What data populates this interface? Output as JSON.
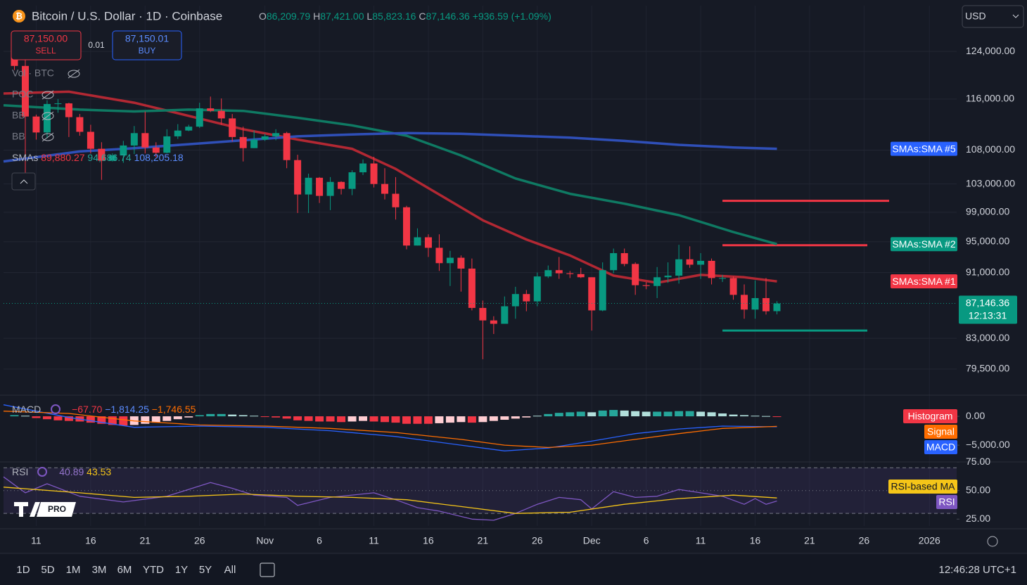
{
  "header": {
    "title": "Bitcoin / U.S. Dollar · 1D · Coinbase",
    "ohlc": [
      {
        "label": "O",
        "value": "86,209.79"
      },
      {
        "label": "H",
        "value": "87,421.00"
      },
      {
        "label": "L",
        "value": "85,823.16"
      },
      {
        "label": "C",
        "value": "87,146.36"
      }
    ],
    "change": "+936.59 (+1.09%)",
    "sell": {
      "price": "87,150.00",
      "label": "SELL"
    },
    "spread": "0.01",
    "buy": {
      "price": "87,150.01",
      "label": "BUY"
    },
    "currency": "USD"
  },
  "toolbar": {
    "ranges": [
      "1D",
      "5D",
      "1M",
      "3M",
      "6M",
      "YTD",
      "1Y",
      "5Y",
      "All"
    ],
    "clock": "12:46:28 UTC+1"
  },
  "chart_data": [
    {
      "type": "candlestick",
      "log": true,
      "grid": true,
      "indicators": [
        "Vol · BTC",
        "POC",
        "BB",
        "BB"
      ],
      "legend_title": "SMAs",
      "xlim": [
        8,
        95.5
      ],
      "xticks": [
        11,
        {
          "value": 16,
          "label": "16"
        },
        {
          "value": 21,
          "label": "21"
        },
        {
          "value": 26,
          "label": "26"
        },
        {
          "value": 32,
          "label": "Nov"
        },
        {
          "value": 37,
          "label": "6"
        },
        {
          "value": 42,
          "label": "11"
        },
        {
          "value": 47,
          "label": "16"
        },
        {
          "value": 52,
          "label": "21"
        },
        {
          "value": 57,
          "label": "26"
        },
        {
          "value": 62,
          "label": "Dec"
        },
        {
          "value": 67,
          "label": "6"
        },
        {
          "value": 72,
          "label": "11"
        },
        {
          "value": 77,
          "label": "16"
        },
        {
          "value": 82,
          "label": "21"
        },
        {
          "value": 87,
          "label": "26"
        },
        {
          "value": 93,
          "label": "2026"
        }
      ],
      "ylim": [
        76800,
        132200
      ],
      "yticks": [
        {
          "value": 124000,
          "label": "124,000.00"
        },
        {
          "value": 116000,
          "label": "116,000.00"
        },
        {
          "value": 108000,
          "label": "108,000.00"
        },
        {
          "value": 103000,
          "label": "103,000.00"
        },
        {
          "value": 99000,
          "label": "99,000.00"
        },
        {
          "value": 95000,
          "label": "95,000.00"
        },
        {
          "value": 91000,
          "label": "91,000.00"
        },
        {
          "value": 83000,
          "label": "83,000.00"
        },
        {
          "value": 79500,
          "label": "79,500.00"
        }
      ],
      "up_color": "#089981",
      "down_color": "#f23645",
      "x": [
        9,
        10,
        11,
        12,
        13,
        14,
        15,
        16,
        17,
        18,
        19,
        20,
        21,
        22,
        23,
        24,
        25,
        26,
        27,
        28,
        29,
        30,
        31,
        32,
        33,
        34,
        35,
        36,
        37,
        38,
        39,
        40,
        41,
        42,
        43,
        44,
        45,
        46,
        47,
        48,
        49,
        50,
        51,
        52,
        53,
        54,
        55,
        56,
        57,
        58,
        59,
        60,
        61,
        62,
        63,
        64,
        65,
        66,
        67,
        68,
        69,
        70,
        71,
        72,
        73,
        74,
        75,
        76,
        77,
        78,
        79
      ],
      "open": [
        123300,
        121500,
        113200,
        110700,
        115200,
        115300,
        113100,
        110800,
        108200,
        106400,
        107200,
        108700,
        110600,
        108400,
        107600,
        110100,
        111000,
        111600,
        114500,
        114100,
        112900,
        110000,
        108300,
        109600,
        110100,
        110600,
        106500,
        101500,
        103900,
        101300,
        103300,
        102300,
        104700,
        106000,
        103000,
        101600,
        99700,
        94500,
        95600,
        94200,
        92200,
        92900,
        91500,
        86600,
        85100,
        84700,
        86800,
        88300,
        87400,
        90500,
        91300,
        90900,
        90800,
        90400,
        86300,
        91300,
        93500,
        92100,
        89400,
        89300,
        90400,
        90600,
        92700,
        92000,
        92500,
        90300,
        90300,
        88200,
        86400,
        87800,
        86209.79
      ],
      "high": [
        123800,
        122500,
        113500,
        115800,
        116000,
        115400,
        113600,
        111900,
        109200,
        107500,
        109400,
        111700,
        114000,
        109200,
        111200,
        112000,
        111900,
        115400,
        116400,
        116100,
        113600,
        111600,
        111000,
        110500,
        111200,
        110800,
        107300,
        104500,
        104000,
        104000,
        103400,
        105000,
        106600,
        107000,
        105300,
        104000,
        99900,
        96800,
        96000,
        96000,
        93800,
        93200,
        92800,
        87500,
        85600,
        88000,
        89200,
        88800,
        91000,
        91900,
        93000,
        91200,
        91600,
        90400,
        92300,
        94100,
        94100,
        92300,
        89800,
        91700,
        92300,
        94600,
        94400,
        93500,
        92800,
        90700,
        90500,
        89500,
        90000,
        90300,
        87421
      ],
      "low": [
        120800,
        104000,
        109600,
        109800,
        113800,
        110000,
        110200,
        107500,
        103600,
        106300,
        106100,
        107400,
        107500,
        106900,
        107500,
        109700,
        110900,
        111400,
        113900,
        111900,
        109300,
        106300,
        108300,
        109400,
        109500,
        105300,
        98900,
        98900,
        100300,
        99300,
        101500,
        101400,
        104300,
        102500,
        100800,
        98000,
        94000,
        94500,
        93000,
        91200,
        89300,
        88600,
        86300,
        80600,
        83500,
        84700,
        85300,
        86200,
        86800,
        90300,
        90200,
        90300,
        90300,
        83900,
        86200,
        90900,
        91800,
        88200,
        88900,
        87800,
        89700,
        89600,
        91600,
        90200,
        89500,
        89800,
        87600,
        85300,
        85300,
        85800,
        85823.16
      ],
      "close": [
        121500,
        113200,
        110700,
        115200,
        115300,
        113100,
        110800,
        108200,
        106400,
        107200,
        108700,
        110600,
        108400,
        107600,
        110100,
        111000,
        111600,
        114500,
        114100,
        112900,
        110000,
        108300,
        109600,
        110100,
        110600,
        106500,
        101500,
        103900,
        101300,
        103300,
        102300,
        104700,
        106000,
        103000,
        101600,
        99700,
        94500,
        95600,
        94200,
        92200,
        92900,
        91500,
        86600,
        85100,
        84700,
        86800,
        88300,
        87400,
        90500,
        91300,
        90900,
        90800,
        90400,
        86300,
        91300,
        93500,
        92100,
        89400,
        89300,
        90400,
        90600,
        92700,
        92000,
        92500,
        90300,
        90300,
        88200,
        86400,
        87800,
        86200,
        87146.36
      ],
      "series": [
        {
          "name": "SMAs:SMA #1",
          "color": "#b22833",
          "legend_value": "89,880.27",
          "x": [
            8,
            14,
            20,
            25,
            30,
            35,
            40,
            44,
            48,
            52,
            56,
            60,
            64,
            68,
            72,
            76,
            79
          ],
          "values": [
            116900,
            117200,
            115400,
            113300,
            111200,
            109600,
            108200,
            105200,
            101500,
            97900,
            95300,
            93200,
            90600,
            89700,
            90700,
            90400,
            89880.27
          ]
        },
        {
          "name": "SMAs:SMA #2",
          "color": "#0f7a63",
          "legend_value": "94,686.74",
          "x": [
            8,
            15,
            20,
            25,
            30,
            35,
            40,
            45,
            50,
            55,
            60,
            65,
            70,
            75,
            79
          ],
          "values": [
            115000,
            114300,
            114000,
            114300,
            114100,
            113000,
            111800,
            110200,
            107200,
            103800,
            101600,
            100200,
            98600,
            96300,
            94686.74
          ]
        },
        {
          "name": "SMAs:SMA #5",
          "color": "#2f4fb8",
          "legend_value": "108,205.18",
          "x": [
            8,
            15,
            20,
            25,
            30,
            35,
            40,
            45,
            50,
            55,
            60,
            65,
            70,
            75,
            79
          ],
          "values": [
            106300,
            107800,
            108300,
            108900,
            109500,
            110100,
            110400,
            110600,
            110500,
            110200,
            109900,
            109400,
            108800,
            108400,
            108205.18
          ]
        }
      ],
      "levels": [
        {
          "value": 100600,
          "x": [
            74,
            89.3
          ],
          "color": "#f23645"
        },
        {
          "value": 94540,
          "x": [
            74,
            87.3
          ],
          "color": "#f23645"
        },
        {
          "value": 83900,
          "x": [
            74,
            87.3
          ],
          "color": "#089981"
        }
      ],
      "last_price": {
        "value": 87146.36,
        "label": "87,146.36"
      },
      "countdown": "12:13:31"
    },
    {
      "type": "macd",
      "title": "MACD",
      "ylim": [
        -7300,
        3300
      ],
      "yticks": [
        {
          "value": 0,
          "label": "0.00"
        },
        {
          "value": -5000,
          "label": "−5,000.00"
        }
      ],
      "histogram": {
        "name": "Histogram",
        "color": "#f23645",
        "up_color": "#26a69a",
        "legend_value": "−67.70",
        "x": [
          9,
          10,
          11,
          12,
          13,
          14,
          15,
          16,
          17,
          18,
          19,
          20,
          21,
          22,
          23,
          24,
          25,
          26,
          27,
          28,
          29,
          30,
          31,
          32,
          33,
          34,
          35,
          36,
          37,
          38,
          39,
          40,
          41,
          42,
          43,
          44,
          45,
          46,
          47,
          48,
          49,
          50,
          51,
          52,
          53,
          54,
          55,
          56,
          57,
          58,
          59,
          60,
          61,
          62,
          63,
          64,
          65,
          66,
          67,
          68,
          69,
          70,
          71,
          72,
          73,
          74,
          75,
          76,
          77,
          78,
          79
        ],
        "values": [
          200,
          100,
          -300,
          -500,
          -700,
          -800,
          -900,
          -1100,
          -1300,
          -1500,
          -1600,
          -1500,
          -1300,
          -1100,
          -800,
          -500,
          -200,
          200,
          400,
          400,
          300,
          200,
          100,
          -100,
          -200,
          -400,
          -700,
          -800,
          -900,
          -900,
          -1000,
          -900,
          -800,
          -900,
          -1000,
          -1100,
          -1300,
          -1300,
          -1300,
          -1200,
          -1100,
          -1000,
          -1100,
          -1000,
          -800,
          -600,
          -400,
          -200,
          100,
          400,
          600,
          700,
          800,
          700,
          1000,
          1100,
          1000,
          900,
          800,
          800,
          800,
          900,
          900,
          800,
          700,
          500,
          300,
          200,
          100,
          50,
          -67.7
        ]
      },
      "series": [
        {
          "name": "MACD",
          "color": "#2962ff",
          "legend_value": "−1,814.25",
          "x": [
            8,
            14,
            20,
            26,
            32,
            38,
            44,
            50,
            54,
            58,
            62,
            66,
            70,
            74,
            79
          ],
          "values": [
            2000,
            -200,
            -1900,
            -1700,
            -1900,
            -2500,
            -3500,
            -5000,
            -6000,
            -5500,
            -4300,
            -3000,
            -2200,
            -1700,
            -1814.25
          ]
        },
        {
          "name": "Signal",
          "color": "#ff6d00",
          "legend_value": "−1,746.55",
          "x": [
            8,
            14,
            20,
            26,
            32,
            38,
            44,
            50,
            54,
            58,
            62,
            66,
            70,
            74,
            79
          ],
          "values": [
            900,
            500,
            -800,
            -1500,
            -1700,
            -2100,
            -2800,
            -4000,
            -5000,
            -5400,
            -5000,
            -4000,
            -3000,
            -2100,
            -1746.55
          ]
        }
      ]
    },
    {
      "type": "line",
      "title": "RSI",
      "ylim": [
        19,
        72
      ],
      "yticks": [
        {
          "value": 75,
          "label": "75.00"
        },
        {
          "value": 50,
          "label": "50.00"
        },
        {
          "value": 25,
          "label": "25.00"
        }
      ],
      "bands": [
        70,
        50,
        30
      ],
      "band_color": "#7e57c2",
      "series": [
        {
          "name": "RSI",
          "color": "#7e57c2",
          "legend_value": "40.89",
          "x": [
            8,
            10,
            12,
            15,
            19,
            23,
            27,
            29,
            31,
            34,
            35,
            38,
            42,
            44,
            46,
            48,
            51,
            53,
            55,
            57,
            59,
            61,
            62,
            64,
            66,
            68,
            70,
            72,
            74,
            76,
            77,
            78,
            79
          ],
          "values": [
            62,
            48,
            56,
            45,
            40,
            45,
            57,
            52,
            46,
            44,
            37,
            44,
            48,
            42,
            35,
            32,
            25,
            24,
            30,
            38,
            44,
            42,
            34,
            49,
            44,
            45,
            51,
            48,
            45,
            38,
            43,
            38,
            40.89
          ]
        },
        {
          "name": "RSI-based MA",
          "color": "#f5c518",
          "legend_value": "43.53",
          "x": [
            8,
            15,
            20,
            25,
            30,
            35,
            40,
            45,
            50,
            55,
            60,
            65,
            70,
            75,
            79
          ],
          "values": [
            53,
            48,
            44,
            45,
            47,
            45,
            44,
            42,
            36,
            30,
            31,
            38,
            43,
            46,
            43.53
          ]
        }
      ]
    }
  ]
}
